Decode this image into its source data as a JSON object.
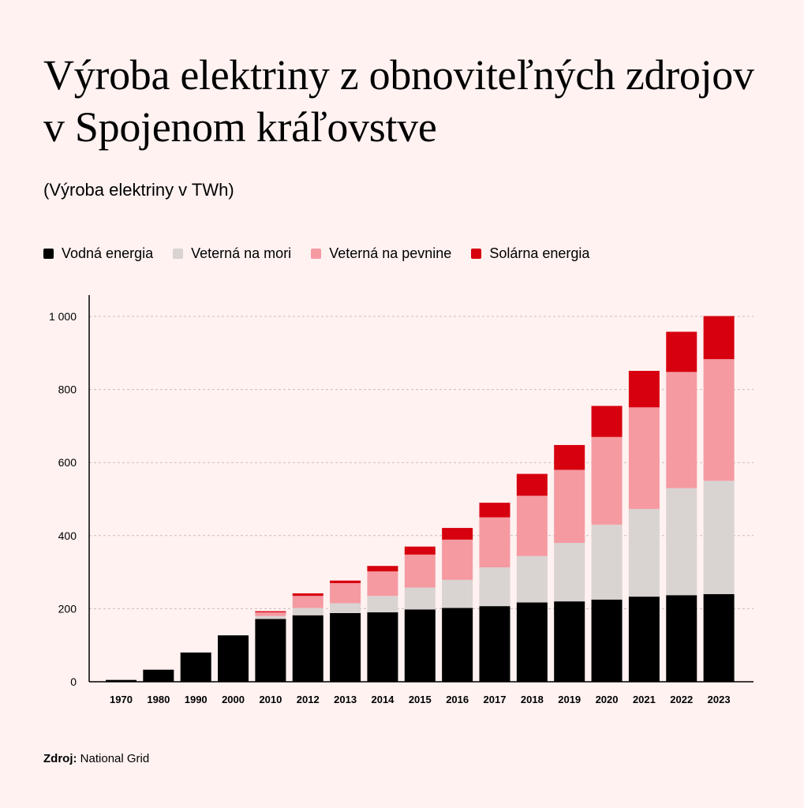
{
  "chart_data": {
    "type": "bar",
    "stacked": true,
    "title": "Výroba elektriny z obnoviteľných zdrojov v Spojenom kráľovstve",
    "subtitle": "(Výroba elektriny v TWh)",
    "categories": [
      "1970",
      "1980",
      "1990",
      "2000",
      "2010",
      "2012",
      "2013",
      "2014",
      "2015",
      "2016",
      "2017",
      "2018",
      "2019",
      "2020",
      "2021",
      "2022",
      "2023"
    ],
    "series": [
      {
        "name": "Vodná energia",
        "color": "#000000",
        "values": [
          5,
          33,
          80,
          127,
          172,
          182,
          188,
          190,
          198,
          202,
          207,
          217,
          220,
          225,
          233,
          237,
          240
        ]
      },
      {
        "name": "Veterná na mori",
        "color": "#d9d3d2",
        "values": [
          0,
          0,
          0,
          0,
          8,
          20,
          27,
          45,
          60,
          77,
          106,
          127,
          160,
          205,
          240,
          293,
          310
        ]
      },
      {
        "name": "Veterná na pevnine",
        "color": "#f59aa1",
        "values": [
          0,
          0,
          0,
          0,
          10,
          33,
          55,
          67,
          90,
          110,
          137,
          165,
          200,
          240,
          278,
          318,
          333
        ]
      },
      {
        "name": "Solárna energia",
        "color": "#d7000f",
        "values": [
          0,
          0,
          0,
          0,
          3,
          7,
          7,
          15,
          22,
          32,
          40,
          60,
          68,
          85,
          100,
          110,
          118
        ]
      }
    ],
    "yticks": [
      0,
      200,
      400,
      600,
      800,
      1000
    ],
    "ytick_labels": [
      "0",
      "200",
      "400",
      "600",
      "800",
      "1 000"
    ],
    "ylim": [
      0,
      1060
    ],
    "grid": true,
    "legend_position": "top-left"
  },
  "source": {
    "label": "Zdroj:",
    "text": "National Grid"
  }
}
